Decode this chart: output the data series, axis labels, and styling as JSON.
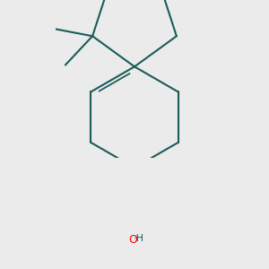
{
  "bg_color": "#ebebeb",
  "bond_color": "#1a5c5a",
  "oh_color": "#ff0000",
  "h_color": "#1a5c5a",
  "line_width": 1.5,
  "dpi": 100,
  "figsize": [
    3.0,
    3.0
  ]
}
